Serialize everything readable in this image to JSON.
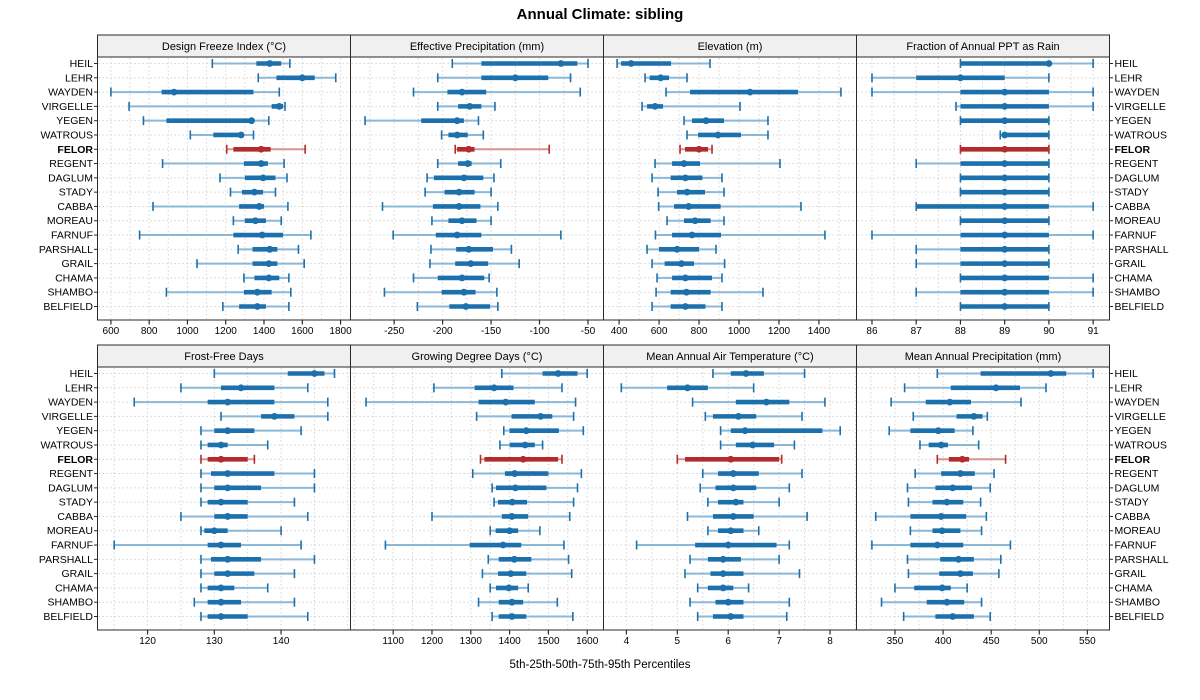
{
  "colors": {
    "main": "#1c70ab",
    "light": "#8cb8d8",
    "highlight": "#b32b2b",
    "highlight_light": "#d79292",
    "grid": "#d4d4d4",
    "border": "#2a2a2a",
    "strip_bg": "#f0f0f0",
    "text": "#000000"
  },
  "chart_data": {
    "type": "scatter",
    "subtype": "percentile-interval-trellis",
    "title": "Annual Climate: sibling",
    "caption": "5th-25th-50th-75th-95th Percentiles",
    "percentile_order": [
      "p5",
      "p25",
      "p50",
      "p75",
      "p95"
    ],
    "legend_position": "none",
    "grid": "dotted-minor",
    "stations": [
      "HEIL",
      "LEHR",
      "WAYDEN",
      "VIRGELLE",
      "YEGEN",
      "WATROUS",
      "FELOR",
      "REGENT",
      "DAGLUM",
      "STADY",
      "CABBA",
      "MOREAU",
      "FARNUF",
      "PARSHALL",
      "GRAIL",
      "CHAMA",
      "SHAMBO",
      "BELFIELD"
    ],
    "highlight_station": "FELOR",
    "panels": [
      {
        "title": "Design Freeze Index (°C)",
        "row": 0,
        "col": 0,
        "ticks": [
          600,
          800,
          1000,
          1200,
          1400,
          1600,
          1800
        ],
        "xlim": [
          530,
          1852
        ],
        "values": [
          [
            1130,
            1360,
            1430,
            1490,
            1535
          ],
          [
            1370,
            1465,
            1600,
            1665,
            1775
          ],
          [
            600,
            865,
            930,
            1345,
            1480
          ],
          [
            695,
            1440,
            1480,
            1500,
            1510
          ],
          [
            770,
            890,
            1335,
            1345,
            1425
          ],
          [
            1015,
            1135,
            1280,
            1295,
            1345
          ],
          [
            1205,
            1240,
            1385,
            1435,
            1615
          ],
          [
            870,
            1295,
            1385,
            1420,
            1505
          ],
          [
            1170,
            1300,
            1395,
            1460,
            1520
          ],
          [
            1225,
            1285,
            1350,
            1395,
            1460
          ],
          [
            820,
            1270,
            1375,
            1400,
            1525
          ],
          [
            1240,
            1300,
            1355,
            1410,
            1490
          ],
          [
            750,
            1240,
            1390,
            1500,
            1645
          ],
          [
            1265,
            1340,
            1430,
            1470,
            1580
          ],
          [
            1050,
            1340,
            1425,
            1470,
            1610
          ],
          [
            1295,
            1350,
            1425,
            1480,
            1530
          ],
          [
            890,
            1295,
            1365,
            1440,
            1540
          ],
          [
            1185,
            1270,
            1365,
            1410,
            1530
          ]
        ]
      },
      {
        "title": "Effective Precipitation (mm)",
        "row": 0,
        "col": 1,
        "ticks": [
          -250,
          -200,
          -150,
          -100,
          -50
        ],
        "xlim": [
          -295,
          -34
        ],
        "values": [
          [
            -190,
            -160,
            -78,
            -61,
            -50
          ],
          [
            -205,
            -160,
            -125,
            -91,
            -68
          ],
          [
            -230,
            -195,
            -180,
            -155,
            -58
          ],
          [
            -205,
            -184,
            -172,
            -160,
            -146
          ],
          [
            -280,
            -222,
            -185,
            -178,
            -163
          ],
          [
            -201,
            -194,
            -185,
            -174,
            -158
          ],
          [
            -187,
            -185,
            -173,
            -167,
            -90
          ],
          [
            -205,
            -184,
            -174,
            -170,
            -140
          ],
          [
            -216,
            -209,
            -178,
            -158,
            -147
          ],
          [
            -218,
            -198,
            -183,
            -167,
            -150
          ],
          [
            -262,
            -210,
            -183,
            -161,
            -143
          ],
          [
            -211,
            -194,
            -180,
            -165,
            -150
          ],
          [
            -251,
            -207,
            -185,
            -160,
            -78
          ],
          [
            -212,
            -186,
            -173,
            -148,
            -129
          ],
          [
            -213,
            -187,
            -171,
            -153,
            -121
          ],
          [
            -230,
            -205,
            -180,
            -157,
            -152
          ],
          [
            -260,
            -201,
            -178,
            -166,
            -144
          ],
          [
            -226,
            -193,
            -176,
            -151,
            -143
          ]
        ]
      },
      {
        "title": "Elevation (m)",
        "row": 0,
        "col": 2,
        "ticks": [
          400,
          600,
          800,
          1000,
          1200,
          1400
        ],
        "xlim": [
          322,
          1588
        ],
        "values": [
          [
            390,
            410,
            460,
            660,
            855
          ],
          [
            530,
            553,
            608,
            650,
            740
          ],
          [
            635,
            755,
            1055,
            1295,
            1510
          ],
          [
            515,
            540,
            580,
            620,
            1005
          ],
          [
            725,
            765,
            835,
            925,
            1145
          ],
          [
            740,
            795,
            895,
            1010,
            1145
          ],
          [
            705,
            730,
            800,
            845,
            865
          ],
          [
            580,
            665,
            725,
            805,
            1205
          ],
          [
            565,
            658,
            732,
            817,
            915
          ],
          [
            595,
            690,
            740,
            830,
            925
          ],
          [
            598,
            675,
            748,
            908,
            1310
          ],
          [
            640,
            725,
            780,
            858,
            925
          ],
          [
            582,
            665,
            765,
            910,
            1430
          ],
          [
            540,
            600,
            690,
            800,
            885
          ],
          [
            565,
            628,
            712,
            775,
            928
          ],
          [
            590,
            665,
            732,
            865,
            915
          ],
          [
            585,
            658,
            737,
            858,
            1120
          ],
          [
            565,
            658,
            732,
            832,
            915
          ]
        ]
      },
      {
        "title": "Fraction of Annual PPT as Rain",
        "row": 0,
        "col": 3,
        "ticks": [
          86,
          87,
          88,
          89,
          90,
          91
        ],
        "xlim": [
          85.65,
          91.37
        ],
        "values": [
          [
            88,
            88,
            90,
            90,
            91
          ],
          [
            86,
            87,
            88,
            89,
            90
          ],
          [
            86,
            88,
            89,
            90,
            91
          ],
          [
            87.9,
            88,
            89,
            90,
            91
          ],
          [
            88,
            88,
            89,
            90,
            90
          ],
          [
            88.9,
            89,
            89,
            90,
            90
          ],
          [
            88,
            88,
            89,
            90,
            90
          ],
          [
            87,
            88,
            89,
            90,
            90
          ],
          [
            88,
            88,
            89,
            90,
            90
          ],
          [
            88,
            88,
            89,
            90,
            90
          ],
          [
            87,
            87,
            89,
            90,
            91
          ],
          [
            88,
            88,
            89,
            90,
            90
          ],
          [
            86,
            88,
            89,
            90,
            91
          ],
          [
            87,
            88,
            89,
            90,
            90
          ],
          [
            87,
            88,
            89,
            90,
            90
          ],
          [
            88,
            88,
            89,
            90,
            91
          ],
          [
            87,
            88,
            89,
            90,
            91
          ],
          [
            88,
            88,
            89,
            90,
            90
          ]
        ]
      },
      {
        "title": "Frost-Free Days",
        "row": 1,
        "col": 0,
        "ticks": [
          120,
          130,
          140
        ],
        "xlim": [
          112.5,
          150.4
        ],
        "values": [
          [
            130,
            141,
            145,
            146.5,
            148
          ],
          [
            125,
            131,
            134,
            139,
            144
          ],
          [
            118,
            129,
            132,
            139,
            147
          ],
          [
            131,
            137,
            139,
            142,
            147
          ],
          [
            128,
            130,
            132,
            136,
            143
          ],
          [
            128,
            129,
            131,
            132,
            138
          ],
          [
            128,
            129,
            131,
            135,
            136
          ],
          [
            128,
            129.5,
            132,
            139,
            145
          ],
          [
            128,
            130,
            132,
            137,
            145
          ],
          [
            128,
            129,
            131,
            135,
            142
          ],
          [
            125,
            130,
            132,
            135,
            144
          ],
          [
            128,
            128.5,
            130,
            132,
            140
          ],
          [
            115,
            129,
            131,
            134,
            143
          ],
          [
            128,
            129.5,
            132,
            137,
            145
          ],
          [
            128,
            130,
            132,
            136,
            142
          ],
          [
            128,
            129,
            131,
            133,
            138
          ],
          [
            127,
            129,
            131,
            134,
            142
          ],
          [
            128,
            129,
            131,
            135,
            144
          ]
        ]
      },
      {
        "title": "Growing Degree Days (°C)",
        "row": 1,
        "col": 1,
        "ticks": [
          1100,
          1200,
          1300,
          1400,
          1500,
          1600
        ],
        "xlim": [
          990,
          1642
        ],
        "values": [
          [
            1380,
            1485,
            1525,
            1575,
            1600
          ],
          [
            1205,
            1310,
            1360,
            1410,
            1535
          ],
          [
            1030,
            1320,
            1390,
            1465,
            1570
          ],
          [
            1315,
            1405,
            1480,
            1510,
            1565
          ],
          [
            1385,
            1400,
            1443,
            1527,
            1590
          ],
          [
            1375,
            1400,
            1440,
            1465,
            1485
          ],
          [
            1325,
            1335,
            1435,
            1525,
            1535
          ],
          [
            1305,
            1388,
            1413,
            1500,
            1585
          ],
          [
            1355,
            1365,
            1415,
            1495,
            1575
          ],
          [
            1360,
            1370,
            1407,
            1445,
            1565
          ],
          [
            1200,
            1380,
            1406,
            1448,
            1555
          ],
          [
            1350,
            1364,
            1400,
            1422,
            1478
          ],
          [
            1080,
            1297,
            1383,
            1430,
            1540
          ],
          [
            1345,
            1372,
            1412,
            1456,
            1552
          ],
          [
            1330,
            1370,
            1403,
            1443,
            1560
          ],
          [
            1350,
            1365,
            1398,
            1422,
            1448
          ],
          [
            1320,
            1372,
            1406,
            1435,
            1523
          ],
          [
            1355,
            1372,
            1406,
            1443,
            1563
          ]
        ]
      },
      {
        "title": "Mean Annual Air Temperature (°C)",
        "row": 1,
        "col": 2,
        "ticks": [
          4,
          5,
          6,
          7,
          8
        ],
        "xlim": [
          3.55,
          8.52
        ],
        "values": [
          [
            5.7,
            6.05,
            6.35,
            6.7,
            7.5
          ],
          [
            3.9,
            4.8,
            5.2,
            5.6,
            6.5
          ],
          [
            5.3,
            6.15,
            6.75,
            7.2,
            7.9
          ],
          [
            5.55,
            5.7,
            6.2,
            6.55,
            7.45
          ],
          [
            5.85,
            6.05,
            6.33,
            7.85,
            8.2
          ],
          [
            5.85,
            6.15,
            6.48,
            6.9,
            7.3
          ],
          [
            5.0,
            5.15,
            6.05,
            7.0,
            7.05
          ],
          [
            5.5,
            5.8,
            6.1,
            6.6,
            7.45
          ],
          [
            5.45,
            5.75,
            6.1,
            6.55,
            7.2
          ],
          [
            5.6,
            5.8,
            6.15,
            6.3,
            7.0
          ],
          [
            5.2,
            5.7,
            6.1,
            6.5,
            7.55
          ],
          [
            5.6,
            5.8,
            6.05,
            6.3,
            6.6
          ],
          [
            4.2,
            5.35,
            6.0,
            6.95,
            7.2
          ],
          [
            5.25,
            5.6,
            5.9,
            6.25,
            7.0
          ],
          [
            5.15,
            5.65,
            5.9,
            6.3,
            7.4
          ],
          [
            5.4,
            5.6,
            5.9,
            6.1,
            6.4
          ],
          [
            5.25,
            5.75,
            6.0,
            6.3,
            7.2
          ],
          [
            5.4,
            5.7,
            6.05,
            6.3,
            7.15
          ]
        ]
      },
      {
        "title": "Mean Annual Precipitation (mm)",
        "row": 1,
        "col": 3,
        "ticks": [
          350,
          400,
          450,
          500,
          550
        ],
        "xlim": [
          310,
          573
        ],
        "values": [
          [
            394,
            439,
            512,
            528,
            556
          ],
          [
            360,
            408,
            455,
            480,
            507
          ],
          [
            346,
            382,
            407,
            429,
            481
          ],
          [
            369,
            414,
            432,
            441,
            446
          ],
          [
            344,
            366,
            395,
            412,
            431
          ],
          [
            376,
            385,
            398,
            405,
            437
          ],
          [
            394,
            406,
            420,
            427,
            465
          ],
          [
            371,
            398,
            418,
            433,
            453
          ],
          [
            363,
            392,
            410,
            430,
            449
          ],
          [
            364,
            389,
            404,
            421,
            439
          ],
          [
            330,
            366,
            398,
            424,
            445
          ],
          [
            366,
            389,
            399,
            418,
            440
          ],
          [
            326,
            366,
            394,
            421,
            470
          ],
          [
            363,
            397,
            416,
            432,
            460
          ],
          [
            364,
            396,
            418,
            431,
            458
          ],
          [
            350,
            370,
            399,
            408,
            425
          ],
          [
            336,
            383,
            404,
            422,
            440
          ],
          [
            359,
            392,
            410,
            432,
            449
          ]
        ]
      }
    ]
  }
}
